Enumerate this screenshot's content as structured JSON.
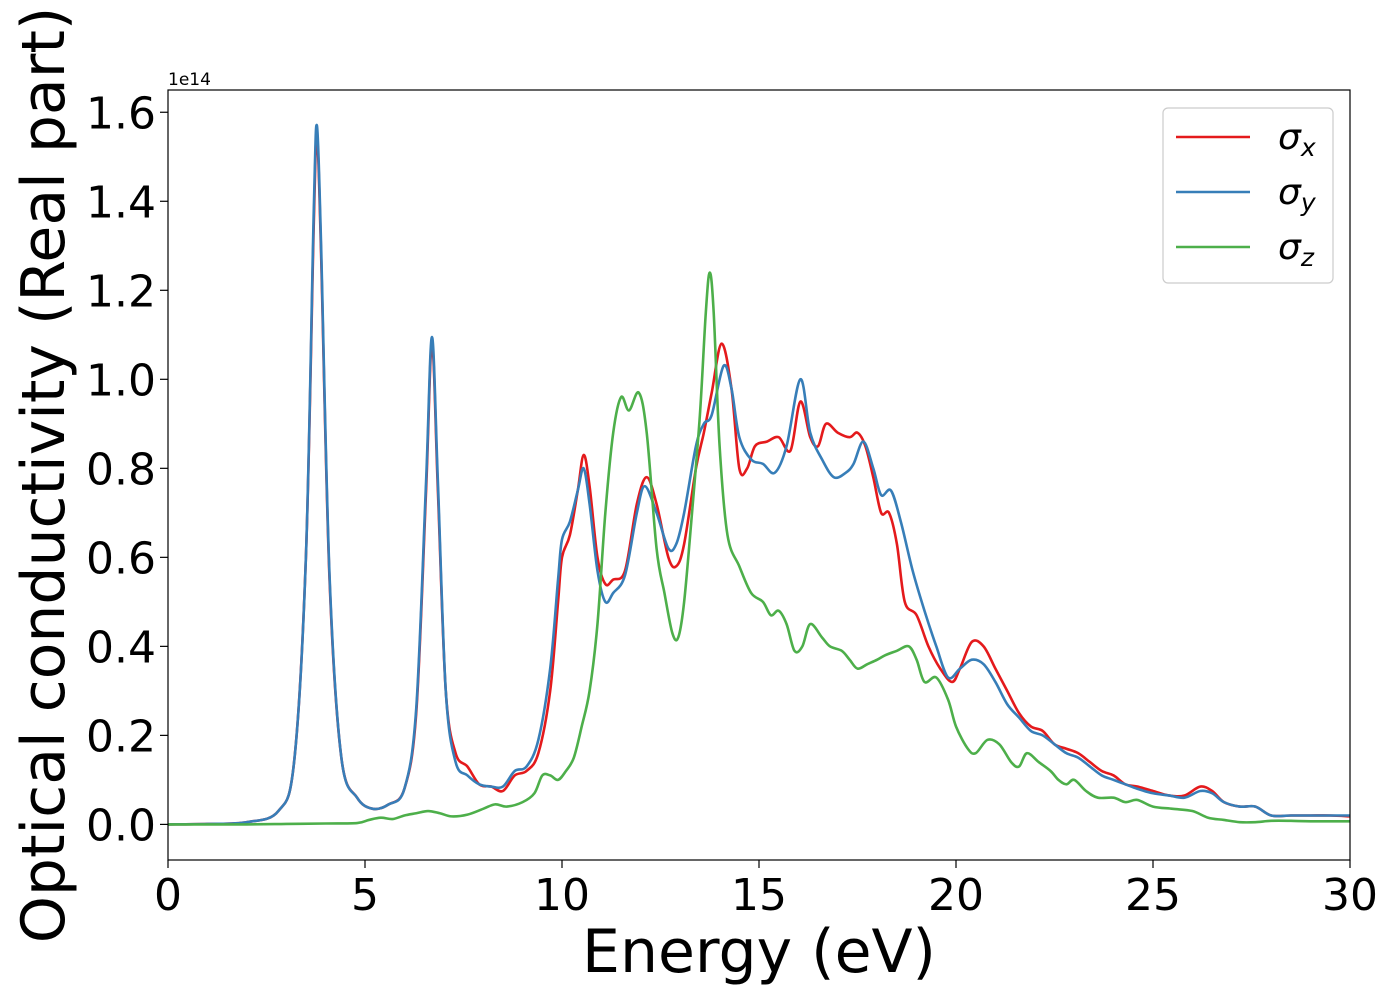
{
  "chart_data": {
    "type": "line",
    "title": "",
    "xlabel": "Energy (eV)",
    "ylabel": "Optical conductivity (Real part)",
    "offset_text": "1e14",
    "xlim": [
      0,
      30
    ],
    "ylim": [
      -0.08,
      1.65
    ],
    "y_unit_multiplier": 100000000000000.0,
    "grid": false,
    "legend_position": "top-right",
    "x_ticks": [
      0,
      5,
      10,
      15,
      20,
      25,
      30
    ],
    "x_tick_labels": [
      "0",
      "5",
      "10",
      "15",
      "20",
      "25",
      "30"
    ],
    "y_ticks": [
      0.0,
      0.2,
      0.4,
      0.6,
      0.8,
      1.0,
      1.2,
      1.4,
      1.6
    ],
    "y_tick_labels": [
      "0.0",
      "0.2",
      "0.4",
      "0.6",
      "0.8",
      "1.0",
      "1.2",
      "1.4",
      "1.6"
    ],
    "series": [
      {
        "name": "σx",
        "symbol": "σ",
        "subscript": "x",
        "color": "#e41a1c",
        "points": [
          [
            0,
            0
          ],
          [
            1,
            0.001
          ],
          [
            2,
            0.005
          ],
          [
            2.8,
            0.03
          ],
          [
            3.2,
            0.14
          ],
          [
            3.5,
            0.6
          ],
          [
            3.7,
            1.35
          ],
          [
            3.78,
            1.55
          ],
          [
            3.88,
            1.3
          ],
          [
            4.1,
            0.55
          ],
          [
            4.4,
            0.15
          ],
          [
            4.8,
            0.06
          ],
          [
            5.2,
            0.035
          ],
          [
            5.6,
            0.045
          ],
          [
            6.0,
            0.08
          ],
          [
            6.3,
            0.25
          ],
          [
            6.55,
            0.75
          ],
          [
            6.7,
            1.08
          ],
          [
            6.85,
            0.75
          ],
          [
            7.05,
            0.3
          ],
          [
            7.3,
            0.16
          ],
          [
            7.6,
            0.13
          ],
          [
            7.9,
            0.09
          ],
          [
            8.2,
            0.085
          ],
          [
            8.5,
            0.075
          ],
          [
            8.8,
            0.11
          ],
          [
            9.1,
            0.12
          ],
          [
            9.4,
            0.16
          ],
          [
            9.7,
            0.3
          ],
          [
            9.9,
            0.5
          ],
          [
            10.0,
            0.6
          ],
          [
            10.2,
            0.65
          ],
          [
            10.4,
            0.75
          ],
          [
            10.55,
            0.83
          ],
          [
            10.7,
            0.76
          ],
          [
            10.9,
            0.6
          ],
          [
            11.1,
            0.54
          ],
          [
            11.3,
            0.55
          ],
          [
            11.6,
            0.57
          ],
          [
            11.9,
            0.72
          ],
          [
            12.15,
            0.78
          ],
          [
            12.4,
            0.72
          ],
          [
            12.7,
            0.6
          ],
          [
            12.9,
            0.58
          ],
          [
            13.1,
            0.63
          ],
          [
            13.4,
            0.8
          ],
          [
            13.6,
            0.88
          ],
          [
            13.8,
            0.97
          ],
          [
            14.05,
            1.08
          ],
          [
            14.3,
            0.98
          ],
          [
            14.5,
            0.8
          ],
          [
            14.7,
            0.8
          ],
          [
            14.9,
            0.85
          ],
          [
            15.2,
            0.86
          ],
          [
            15.5,
            0.87
          ],
          [
            15.8,
            0.84
          ],
          [
            16.05,
            0.95
          ],
          [
            16.3,
            0.87
          ],
          [
            16.5,
            0.85
          ],
          [
            16.7,
            0.9
          ],
          [
            17.0,
            0.88
          ],
          [
            17.3,
            0.87
          ],
          [
            17.5,
            0.88
          ],
          [
            17.7,
            0.85
          ],
          [
            17.9,
            0.78
          ],
          [
            18.1,
            0.7
          ],
          [
            18.3,
            0.7
          ],
          [
            18.5,
            0.63
          ],
          [
            18.7,
            0.5
          ],
          [
            19.0,
            0.47
          ],
          [
            19.3,
            0.4
          ],
          [
            19.6,
            0.35
          ],
          [
            19.9,
            0.32
          ],
          [
            20.1,
            0.35
          ],
          [
            20.4,
            0.41
          ],
          [
            20.7,
            0.4
          ],
          [
            21.0,
            0.35
          ],
          [
            21.3,
            0.3
          ],
          [
            21.6,
            0.25
          ],
          [
            21.9,
            0.22
          ],
          [
            22.2,
            0.21
          ],
          [
            22.5,
            0.18
          ],
          [
            22.8,
            0.17
          ],
          [
            23.1,
            0.16
          ],
          [
            23.4,
            0.14
          ],
          [
            23.7,
            0.12
          ],
          [
            24.0,
            0.11
          ],
          [
            24.3,
            0.09
          ],
          [
            24.6,
            0.085
          ],
          [
            25.0,
            0.075
          ],
          [
            25.4,
            0.065
          ],
          [
            25.8,
            0.065
          ],
          [
            26.2,
            0.085
          ],
          [
            26.5,
            0.075
          ],
          [
            26.8,
            0.05
          ],
          [
            27.2,
            0.04
          ],
          [
            27.6,
            0.04
          ],
          [
            28.0,
            0.02
          ],
          [
            28.5,
            0.02
          ],
          [
            29.0,
            0.02
          ],
          [
            29.5,
            0.02
          ],
          [
            30,
            0.018
          ]
        ]
      },
      {
        "name": "σy",
        "symbol": "σ",
        "subscript": "y",
        "color": "#377eb8",
        "points": [
          [
            0,
            0
          ],
          [
            1,
            0.001
          ],
          [
            2,
            0.005
          ],
          [
            2.8,
            0.03
          ],
          [
            3.2,
            0.14
          ],
          [
            3.5,
            0.6
          ],
          [
            3.7,
            1.38
          ],
          [
            3.78,
            1.57
          ],
          [
            3.88,
            1.32
          ],
          [
            4.1,
            0.56
          ],
          [
            4.4,
            0.15
          ],
          [
            4.8,
            0.06
          ],
          [
            5.2,
            0.035
          ],
          [
            5.6,
            0.045
          ],
          [
            6.0,
            0.08
          ],
          [
            6.3,
            0.26
          ],
          [
            6.55,
            0.77
          ],
          [
            6.7,
            1.095
          ],
          [
            6.85,
            0.77
          ],
          [
            7.05,
            0.3
          ],
          [
            7.3,
            0.14
          ],
          [
            7.6,
            0.11
          ],
          [
            7.9,
            0.09
          ],
          [
            8.2,
            0.085
          ],
          [
            8.5,
            0.085
          ],
          [
            8.8,
            0.12
          ],
          [
            9.1,
            0.13
          ],
          [
            9.4,
            0.19
          ],
          [
            9.7,
            0.35
          ],
          [
            9.9,
            0.55
          ],
          [
            10.0,
            0.64
          ],
          [
            10.2,
            0.68
          ],
          [
            10.4,
            0.75
          ],
          [
            10.55,
            0.8
          ],
          [
            10.7,
            0.72
          ],
          [
            10.9,
            0.57
          ],
          [
            11.1,
            0.5
          ],
          [
            11.3,
            0.52
          ],
          [
            11.6,
            0.56
          ],
          [
            11.9,
            0.7
          ],
          [
            12.1,
            0.76
          ],
          [
            12.4,
            0.7
          ],
          [
            12.7,
            0.62
          ],
          [
            12.9,
            0.63
          ],
          [
            13.1,
            0.7
          ],
          [
            13.4,
            0.85
          ],
          [
            13.6,
            0.9
          ],
          [
            13.8,
            0.92
          ],
          [
            14.1,
            1.03
          ],
          [
            14.3,
            0.98
          ],
          [
            14.5,
            0.87
          ],
          [
            14.8,
            0.82
          ],
          [
            15.1,
            0.81
          ],
          [
            15.4,
            0.79
          ],
          [
            15.7,
            0.85
          ],
          [
            16.05,
            1.0
          ],
          [
            16.3,
            0.88
          ],
          [
            16.6,
            0.82
          ],
          [
            16.9,
            0.78
          ],
          [
            17.2,
            0.79
          ],
          [
            17.4,
            0.81
          ],
          [
            17.65,
            0.86
          ],
          [
            17.9,
            0.8
          ],
          [
            18.1,
            0.74
          ],
          [
            18.35,
            0.75
          ],
          [
            18.6,
            0.68
          ],
          [
            18.9,
            0.57
          ],
          [
            19.2,
            0.48
          ],
          [
            19.5,
            0.4
          ],
          [
            19.8,
            0.33
          ],
          [
            20.1,
            0.35
          ],
          [
            20.4,
            0.37
          ],
          [
            20.7,
            0.36
          ],
          [
            21.0,
            0.32
          ],
          [
            21.3,
            0.27
          ],
          [
            21.6,
            0.24
          ],
          [
            21.9,
            0.21
          ],
          [
            22.2,
            0.2
          ],
          [
            22.5,
            0.18
          ],
          [
            22.8,
            0.16
          ],
          [
            23.1,
            0.15
          ],
          [
            23.4,
            0.13
          ],
          [
            23.7,
            0.11
          ],
          [
            24.0,
            0.1
          ],
          [
            24.3,
            0.09
          ],
          [
            24.6,
            0.08
          ],
          [
            25.0,
            0.07
          ],
          [
            25.4,
            0.065
          ],
          [
            25.8,
            0.06
          ],
          [
            26.2,
            0.075
          ],
          [
            26.5,
            0.07
          ],
          [
            26.8,
            0.05
          ],
          [
            27.2,
            0.04
          ],
          [
            27.6,
            0.04
          ],
          [
            28.0,
            0.02
          ],
          [
            28.5,
            0.02
          ],
          [
            29.0,
            0.02
          ],
          [
            29.5,
            0.02
          ],
          [
            30,
            0.02
          ]
        ]
      },
      {
        "name": "σz",
        "symbol": "σ",
        "subscript": "z",
        "color": "#4daf4a",
        "points": [
          [
            0,
            0
          ],
          [
            2,
            0
          ],
          [
            3,
            0.001
          ],
          [
            4,
            0.002
          ],
          [
            4.8,
            0.003
          ],
          [
            5.1,
            0.01
          ],
          [
            5.4,
            0.015
          ],
          [
            5.7,
            0.012
          ],
          [
            6.0,
            0.02
          ],
          [
            6.3,
            0.025
          ],
          [
            6.6,
            0.03
          ],
          [
            6.9,
            0.025
          ],
          [
            7.2,
            0.018
          ],
          [
            7.6,
            0.022
          ],
          [
            8.0,
            0.035
          ],
          [
            8.3,
            0.045
          ],
          [
            8.6,
            0.04
          ],
          [
            9.0,
            0.05
          ],
          [
            9.3,
            0.07
          ],
          [
            9.5,
            0.11
          ],
          [
            9.7,
            0.11
          ],
          [
            9.9,
            0.1
          ],
          [
            10.1,
            0.12
          ],
          [
            10.3,
            0.15
          ],
          [
            10.5,
            0.22
          ],
          [
            10.7,
            0.3
          ],
          [
            10.9,
            0.45
          ],
          [
            11.1,
            0.7
          ],
          [
            11.3,
            0.88
          ],
          [
            11.5,
            0.96
          ],
          [
            11.7,
            0.93
          ],
          [
            11.95,
            0.97
          ],
          [
            12.15,
            0.88
          ],
          [
            12.4,
            0.62
          ],
          [
            12.6,
            0.52
          ],
          [
            12.8,
            0.43
          ],
          [
            12.95,
            0.42
          ],
          [
            13.1,
            0.5
          ],
          [
            13.3,
            0.7
          ],
          [
            13.5,
            0.92
          ],
          [
            13.65,
            1.15
          ],
          [
            13.75,
            1.24
          ],
          [
            13.85,
            1.15
          ],
          [
            14.0,
            0.85
          ],
          [
            14.2,
            0.65
          ],
          [
            14.5,
            0.58
          ],
          [
            14.8,
            0.52
          ],
          [
            15.1,
            0.5
          ],
          [
            15.3,
            0.47
          ],
          [
            15.5,
            0.48
          ],
          [
            15.7,
            0.45
          ],
          [
            15.9,
            0.39
          ],
          [
            16.1,
            0.4
          ],
          [
            16.3,
            0.45
          ],
          [
            16.6,
            0.42
          ],
          [
            16.8,
            0.4
          ],
          [
            17.1,
            0.39
          ],
          [
            17.3,
            0.37
          ],
          [
            17.5,
            0.35
          ],
          [
            17.75,
            0.36
          ],
          [
            18.0,
            0.37
          ],
          [
            18.2,
            0.38
          ],
          [
            18.5,
            0.39
          ],
          [
            18.8,
            0.4
          ],
          [
            19.0,
            0.37
          ],
          [
            19.2,
            0.32
          ],
          [
            19.5,
            0.33
          ],
          [
            19.8,
            0.28
          ],
          [
            20.0,
            0.22
          ],
          [
            20.3,
            0.17
          ],
          [
            20.5,
            0.16
          ],
          [
            20.8,
            0.19
          ],
          [
            21.1,
            0.18
          ],
          [
            21.4,
            0.14
          ],
          [
            21.6,
            0.13
          ],
          [
            21.8,
            0.16
          ],
          [
            22.1,
            0.14
          ],
          [
            22.4,
            0.12
          ],
          [
            22.6,
            0.1
          ],
          [
            22.8,
            0.09
          ],
          [
            23.0,
            0.1
          ],
          [
            23.3,
            0.075
          ],
          [
            23.6,
            0.06
          ],
          [
            24.0,
            0.06
          ],
          [
            24.3,
            0.05
          ],
          [
            24.6,
            0.055
          ],
          [
            25.0,
            0.04
          ],
          [
            25.5,
            0.035
          ],
          [
            26.0,
            0.03
          ],
          [
            26.4,
            0.015
          ],
          [
            26.8,
            0.01
          ],
          [
            27.2,
            0.005
          ],
          [
            27.6,
            0.005
          ],
          [
            28.0,
            0.008
          ],
          [
            28.5,
            0.008
          ],
          [
            29.0,
            0.007
          ],
          [
            30,
            0.007
          ]
        ]
      }
    ]
  }
}
